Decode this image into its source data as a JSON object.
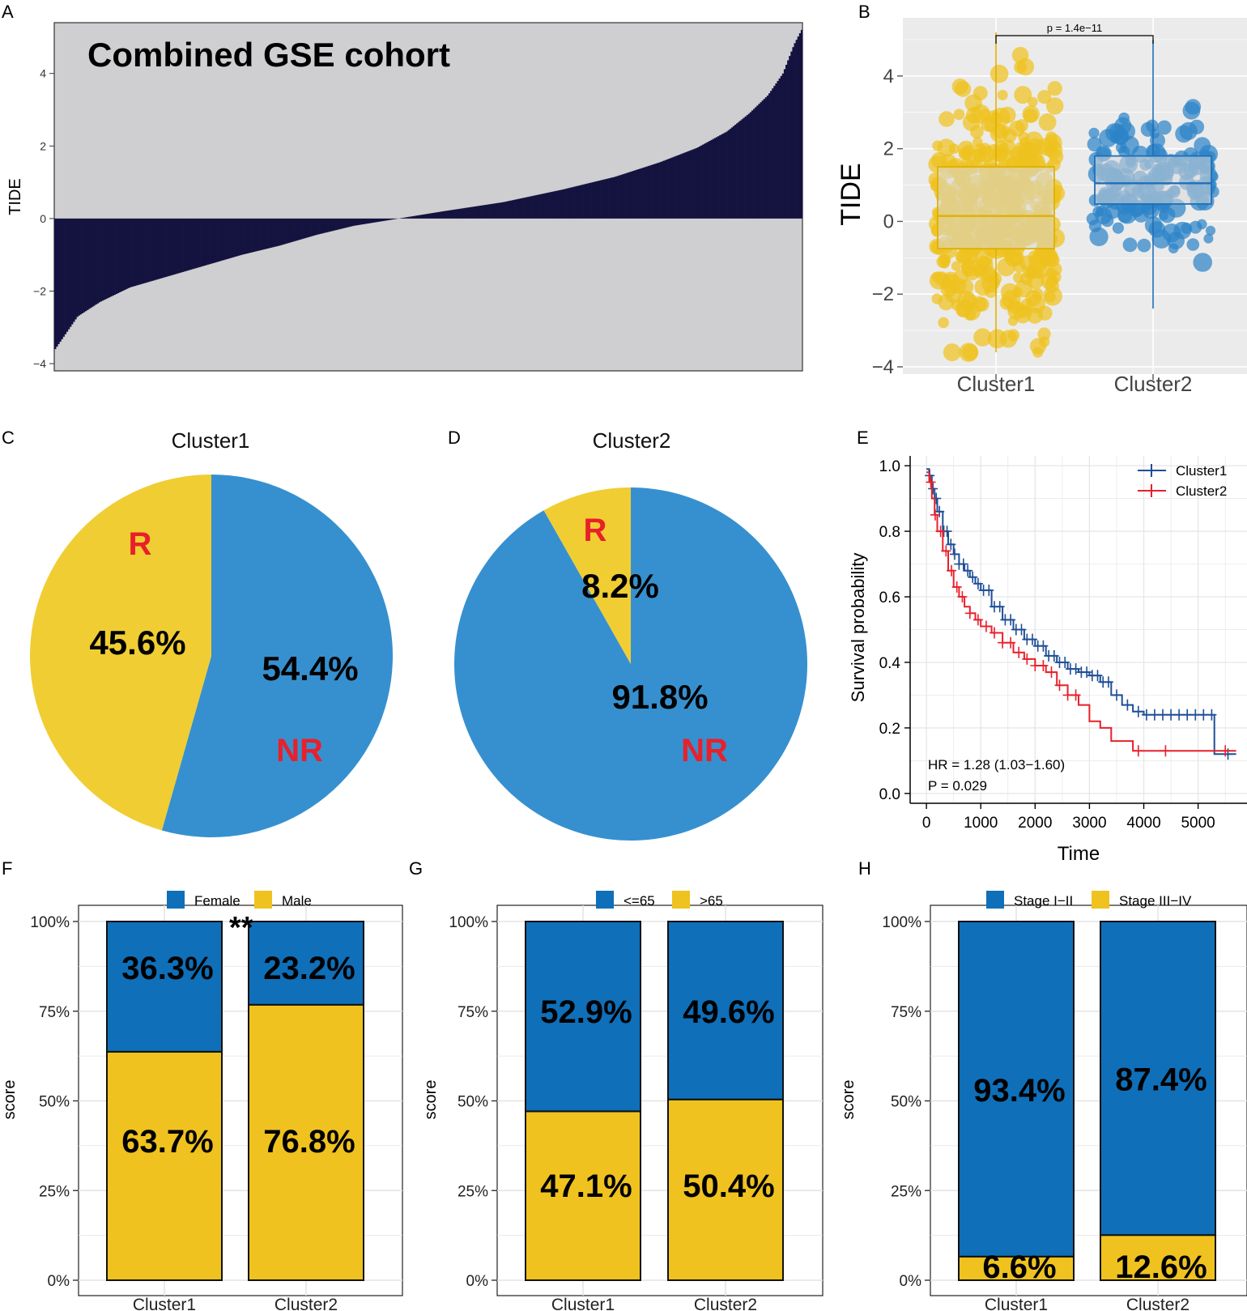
{
  "panel_labels": [
    "A",
    "B",
    "C",
    "D",
    "E",
    "F",
    "G",
    "H"
  ],
  "colors": {
    "navy": "#14123f",
    "grey": "#cfcfd1",
    "blue": "#0f6fb9",
    "pie_blue": "#3690cf",
    "yellow": "#efc21f",
    "pie_yellow": "#f0cd33",
    "red": "#e8202a",
    "km_blue": "#1f4e96",
    "km_red": "#e8202a"
  },
  "chart_data": [
    {
      "panel": "A",
      "type": "bar",
      "title": "Combined GSE cohort",
      "ylabel": "TIDE",
      "xlabel": "",
      "ylim": [
        -4.2,
        5.4
      ],
      "yticks": [
        "-4",
        "-2",
        "0",
        "2",
        "4"
      ],
      "n_samples": 440,
      "quantiles": [
        [
          0,
          -3.6
        ],
        [
          0.01,
          -3.3
        ],
        [
          0.03,
          -2.7
        ],
        [
          0.06,
          -2.3
        ],
        [
          0.1,
          -1.9
        ],
        [
          0.15,
          -1.6
        ],
        [
          0.2,
          -1.3
        ],
        [
          0.25,
          -1.0
        ],
        [
          0.3,
          -0.75
        ],
        [
          0.35,
          -0.45
        ],
        [
          0.4,
          -0.2
        ],
        [
          0.46,
          0.0
        ],
        [
          0.52,
          0.2
        ],
        [
          0.6,
          0.45
        ],
        [
          0.68,
          0.8
        ],
        [
          0.75,
          1.15
        ],
        [
          0.81,
          1.55
        ],
        [
          0.86,
          1.95
        ],
        [
          0.9,
          2.4
        ],
        [
          0.93,
          2.9
        ],
        [
          0.955,
          3.4
        ],
        [
          0.975,
          4.0
        ],
        [
          0.99,
          4.8
        ],
        [
          1.0,
          5.2
        ]
      ]
    },
    {
      "panel": "B",
      "type": "box",
      "ylabel": "TIDE",
      "categories": [
        "Cluster1",
        "Cluster2"
      ],
      "ylim": [
        -4.2,
        5.6
      ],
      "yticks": [
        "−4",
        "−2",
        "0",
        "2",
        "4"
      ],
      "p_label": "p = 1.4e−11",
      "series": [
        {
          "name": "Cluster1",
          "q1": -0.75,
          "median": 0.15,
          "q3": 1.5,
          "min": -3.6,
          "max": 5.2,
          "n_points": 430
        },
        {
          "name": "Cluster2",
          "q1": 0.48,
          "median": 1.05,
          "q3": 1.8,
          "min": -2.4,
          "max": 5.0,
          "n_points": 150
        }
      ]
    },
    {
      "panel": "C",
      "type": "pie",
      "title": "Cluster1",
      "slices": [
        {
          "name": "NR",
          "value": 54.4,
          "label": "54.4%"
        },
        {
          "name": "R",
          "value": 45.6,
          "label": "45.6%"
        }
      ]
    },
    {
      "panel": "D",
      "type": "pie",
      "title": "Cluster2",
      "slices": [
        {
          "name": "NR",
          "value": 91.8,
          "label": "91.8%"
        },
        {
          "name": "R",
          "value": 8.2,
          "label": "8.2%"
        }
      ]
    },
    {
      "panel": "E",
      "type": "line",
      "xlabel": "Time",
      "ylabel": "Survival probability",
      "xlim": [
        -300,
        5900
      ],
      "ylim": [
        -0.03,
        1.03
      ],
      "xticks": [
        "0",
        "1000",
        "2000",
        "3000",
        "4000",
        "5000"
      ],
      "yticks": [
        "0.0",
        "0.2",
        "0.4",
        "0.6",
        "0.8",
        "1.0"
      ],
      "hr_text": "HR = 1.28 (1.03−1.60)",
      "p_text": "P = 0.029",
      "legend": "top-right",
      "series": [
        {
          "name": "Cluster1",
          "points": [
            [
              0,
              0.99
            ],
            [
              50,
              0.97
            ],
            [
              100,
              0.93
            ],
            [
              150,
              0.9
            ],
            [
              200,
              0.86
            ],
            [
              300,
              0.8
            ],
            [
              400,
              0.76
            ],
            [
              500,
              0.73
            ],
            [
              600,
              0.7
            ],
            [
              700,
              0.68
            ],
            [
              800,
              0.66
            ],
            [
              900,
              0.64
            ],
            [
              1000,
              0.62
            ],
            [
              1200,
              0.57
            ],
            [
              1400,
              0.53
            ],
            [
              1600,
              0.5
            ],
            [
              1800,
              0.47
            ],
            [
              2000,
              0.45
            ],
            [
              2200,
              0.42
            ],
            [
              2400,
              0.4
            ],
            [
              2600,
              0.38
            ],
            [
              2800,
              0.37
            ],
            [
              3000,
              0.36
            ],
            [
              3200,
              0.34
            ],
            [
              3400,
              0.3
            ],
            [
              3600,
              0.27
            ],
            [
              3800,
              0.25
            ],
            [
              4000,
              0.24
            ],
            [
              5300,
              0.24
            ],
            [
              5300,
              0.12
            ],
            [
              5700,
              0.12
            ]
          ],
          "censor_times": [
            60,
            120,
            180,
            240,
            320,
            380,
            450,
            520,
            600,
            680,
            760,
            850,
            950,
            1050,
            1150,
            1250,
            1350,
            1450,
            1550,
            1650,
            1750,
            1850,
            1950,
            2050,
            2150,
            2250,
            2350,
            2450,
            2550,
            2650,
            2750,
            2850,
            2950,
            3050,
            3150,
            3250,
            3350,
            3500,
            3700,
            3900,
            4050,
            4200,
            4350,
            4500,
            4650,
            4800,
            4950,
            5100,
            5250,
            5550
          ]
        },
        {
          "name": "Cluster2",
          "points": [
            [
              0,
              0.98
            ],
            [
              50,
              0.95
            ],
            [
              100,
              0.9
            ],
            [
              150,
              0.85
            ],
            [
              200,
              0.8
            ],
            [
              300,
              0.74
            ],
            [
              400,
              0.68
            ],
            [
              500,
              0.63
            ],
            [
              600,
              0.6
            ],
            [
              700,
              0.57
            ],
            [
              800,
              0.55
            ],
            [
              900,
              0.53
            ],
            [
              1000,
              0.51
            ],
            [
              1200,
              0.49
            ],
            [
              1400,
              0.46
            ],
            [
              1600,
              0.43
            ],
            [
              1800,
              0.41
            ],
            [
              2000,
              0.39
            ],
            [
              2200,
              0.37
            ],
            [
              2400,
              0.33
            ],
            [
              2600,
              0.3
            ],
            [
              2800,
              0.27
            ],
            [
              3000,
              0.22
            ],
            [
              3200,
              0.2
            ],
            [
              3400,
              0.16
            ],
            [
              3600,
              0.16
            ],
            [
              3800,
              0.13
            ],
            [
              5700,
              0.13
            ]
          ],
          "censor_times": [
            80,
            160,
            260,
            360,
            460,
            560,
            660,
            800,
            950,
            1100,
            1250,
            1400,
            1550,
            1700,
            1850,
            2000,
            2150,
            2300,
            2450,
            2600,
            2750,
            3900,
            4400,
            5500
          ]
        }
      ]
    },
    {
      "panel": "F",
      "type": "bar",
      "stacked": true,
      "categories": [
        "Cluster1",
        "Cluster2"
      ],
      "ylabel": "score",
      "yticks": [
        "0%",
        "25%",
        "50%",
        "75%",
        "100%"
      ],
      "legend_title": "",
      "significance": "**",
      "series": [
        {
          "name": "Female",
          "values": [
            36.3,
            23.2
          ],
          "labels": [
            "36.3%",
            "23.2%"
          ]
        },
        {
          "name": "Male",
          "values": [
            63.7,
            76.8
          ],
          "labels": [
            "63.7%",
            "76.8%"
          ]
        }
      ]
    },
    {
      "panel": "G",
      "type": "bar",
      "stacked": true,
      "categories": [
        "Cluster1",
        "Cluster2"
      ],
      "ylabel": "score",
      "yticks": [
        "0%",
        "25%",
        "50%",
        "75%",
        "100%"
      ],
      "significance": "",
      "series": [
        {
          "name": "<=65",
          "values": [
            52.9,
            49.6
          ],
          "labels": [
            "52.9%",
            "49.6%"
          ]
        },
        {
          "name": ">65",
          "values": [
            47.1,
            50.4
          ],
          "labels": [
            "47.1%",
            "50.4%"
          ]
        }
      ]
    },
    {
      "panel": "H",
      "type": "bar",
      "stacked": true,
      "categories": [
        "Cluster1",
        "Cluster2"
      ],
      "ylabel": "score",
      "yticks": [
        "0%",
        "25%",
        "50%",
        "75%",
        "100%"
      ],
      "significance": "",
      "series": [
        {
          "name": "Stage I−II",
          "values": [
            93.4,
            87.4
          ],
          "labels": [
            "93.4%",
            "87.4%"
          ]
        },
        {
          "name": "Stage III−IV",
          "values": [
            6.6,
            12.6
          ],
          "labels": [
            "6.6%",
            "12.6%"
          ]
        }
      ]
    }
  ]
}
